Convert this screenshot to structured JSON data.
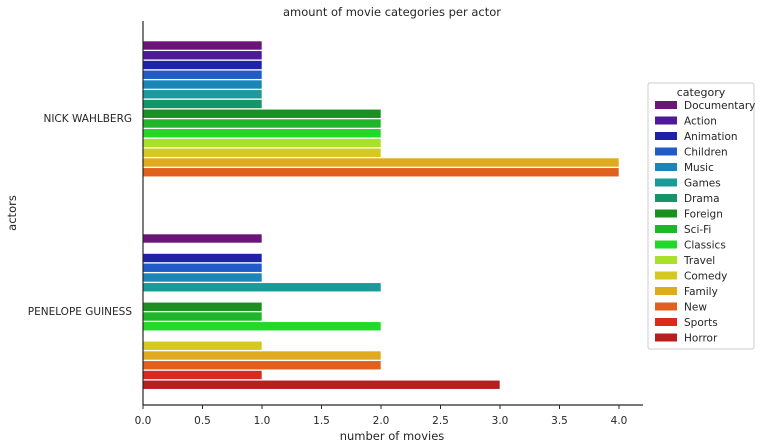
{
  "chart_data": {
    "type": "bar",
    "orientation": "horizontal",
    "title": "amount of movie categories per actor",
    "xlabel": "number of movies",
    "ylabel": "actors",
    "xlim": [
      0,
      4.2
    ],
    "x_ticks": [
      "0.0",
      "0.5",
      "1.0",
      "1.5",
      "2.0",
      "2.5",
      "3.0",
      "3.5",
      "4.0"
    ],
    "grid": false,
    "legend_title": "category",
    "legend_placement": "right",
    "categories": [
      "NICK WAHLBERG",
      "PENELOPE GUINESS"
    ],
    "series": [
      {
        "name": "Documentary",
        "color": "#6a1577",
        "values": [
          1,
          1
        ]
      },
      {
        "name": "Action",
        "color": "#4e1a9a",
        "values": [
          1,
          0
        ]
      },
      {
        "name": "Animation",
        "color": "#1d22a8",
        "values": [
          1,
          1
        ]
      },
      {
        "name": "Children",
        "color": "#1f5bc9",
        "values": [
          1,
          1
        ]
      },
      {
        "name": "Music",
        "color": "#1a86b8",
        "values": [
          1,
          1
        ]
      },
      {
        "name": "Games",
        "color": "#1a9a98",
        "values": [
          1,
          2
        ]
      },
      {
        "name": "Drama",
        "color": "#17936a",
        "values": [
          1,
          0
        ]
      },
      {
        "name": "Foreign",
        "color": "#1a9020",
        "values": [
          2,
          1
        ]
      },
      {
        "name": "Sci-Fi",
        "color": "#1fb62a",
        "values": [
          2,
          1
        ]
      },
      {
        "name": "Classics",
        "color": "#22d92a",
        "values": [
          2,
          2
        ]
      },
      {
        "name": "Travel",
        "color": "#a8e02a",
        "values": [
          2,
          0
        ]
      },
      {
        "name": "Comedy",
        "color": "#d4c91f",
        "values": [
          2,
          1
        ]
      },
      {
        "name": "Family",
        "color": "#e0aa1f",
        "values": [
          4,
          2
        ]
      },
      {
        "name": "New",
        "color": "#e0601f",
        "values": [
          4,
          2
        ]
      },
      {
        "name": "Sports",
        "color": "#d92a1f",
        "values": [
          0,
          1
        ]
      },
      {
        "name": "Horror",
        "color": "#b81e1e",
        "values": [
          0,
          3
        ]
      }
    ]
  }
}
